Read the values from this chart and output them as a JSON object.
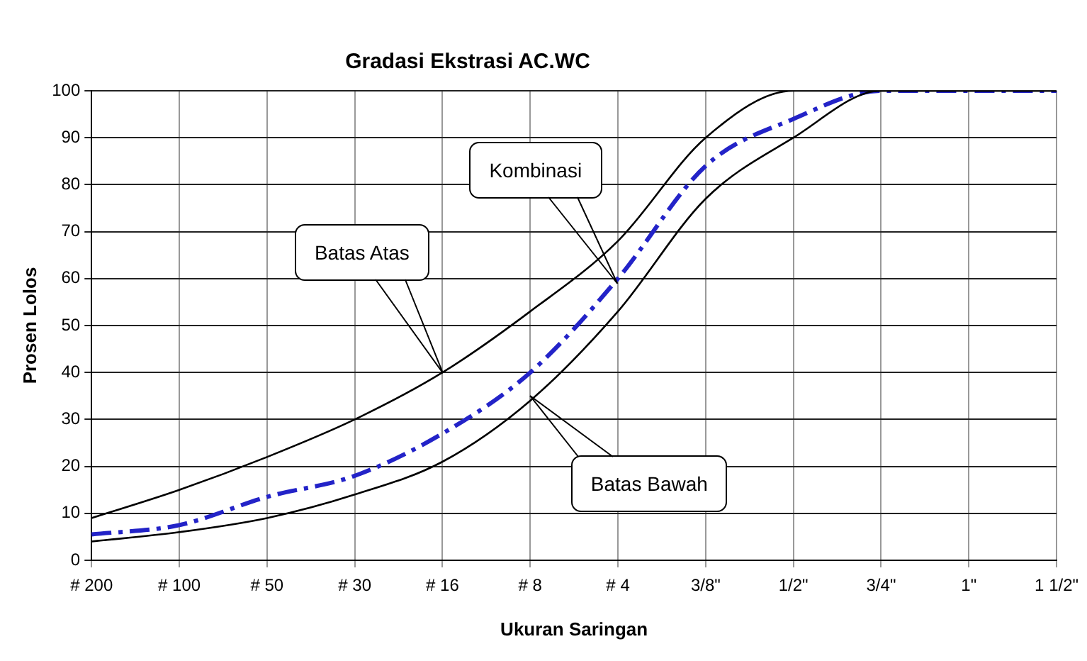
{
  "chart_data": {
    "type": "line",
    "title": "Gradasi Ekstrasi AC.WC",
    "xlabel": "Ukuran Saringan",
    "ylabel": "Prosen Lolos",
    "categories": [
      "# 200",
      "# 100",
      "# 50",
      "# 30",
      "# 16",
      "# 8",
      "# 4",
      "3/8\"",
      "1/2\"",
      "3/4\"",
      "1\"",
      "1 1/2\""
    ],
    "series": [
      {
        "color": "#000000",
        "line_style": "solid",
        "values": [
          9,
          15,
          22,
          30,
          40,
          53,
          68,
          90,
          100,
          100,
          100,
          100
        ]
      },
      {
        "color": "#000000",
        "line_style": "solid",
        "values": [
          4,
          6,
          9,
          14,
          21,
          34,
          53,
          77,
          90,
          100,
          100,
          100
        ]
      },
      {
        "color": "#2323c8",
        "line_style": "dashed",
        "values": [
          5.5,
          7.5,
          13.5,
          18,
          27,
          40,
          60,
          84,
          94,
          100,
          100,
          100
        ]
      }
    ],
    "ylim": [
      0,
      100
    ],
    "yticks": [
      0,
      10,
      20,
      30,
      40,
      50,
      60,
      70,
      80,
      90,
      100
    ],
    "grid": true,
    "legend": false,
    "marker": "none",
    "annotations": [
      "Batas Atas",
      "Kombinasi",
      "Batas Bawah"
    ]
  }
}
